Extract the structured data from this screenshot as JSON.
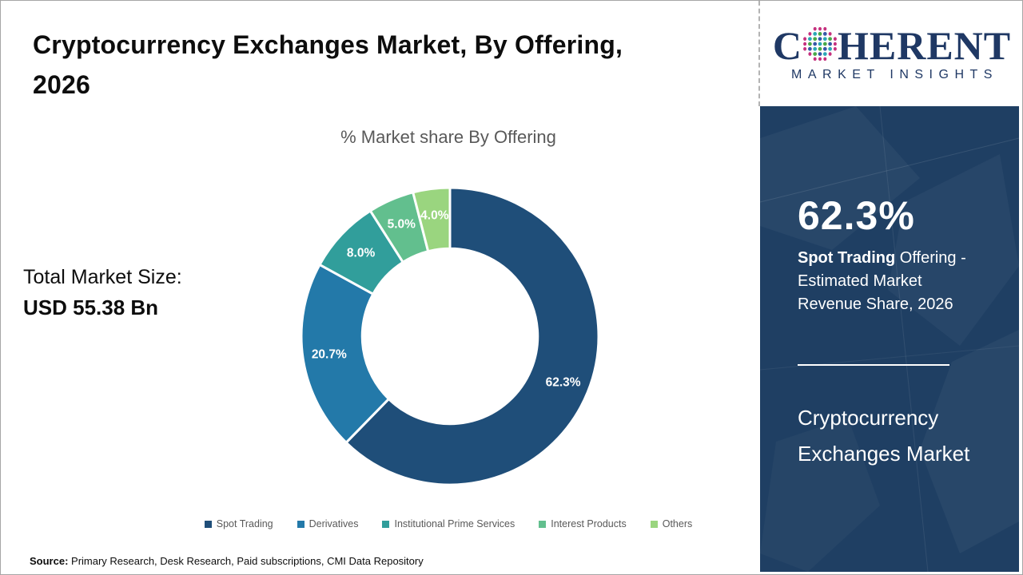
{
  "header": {
    "title_line1": "Cryptocurrency Exchanges Market, By Offering,",
    "title_line2": "2026"
  },
  "total_market": {
    "label": "Total Market Size:",
    "value": "USD 55.38 Bn"
  },
  "chart_data": {
    "type": "pie",
    "subtype": "donut",
    "title": "% Market share By Offering",
    "categories": [
      "Spot Trading",
      "Derivatives",
      "Institutional Prime Services",
      "Interest Products",
      "Others"
    ],
    "values": [
      62.3,
      20.7,
      8.0,
      5.0,
      4.0
    ],
    "unit": "%",
    "colors": [
      "#1f4e79",
      "#2379a9",
      "#319e9b",
      "#62bf8e",
      "#9ad57f"
    ],
    "start_angle_deg": 0,
    "direction": "clockwise",
    "inner_radius_ratio": 0.59,
    "legend_position": "bottom",
    "slice_label_color": "#ffffff",
    "annotation_total": "Total Market Size: USD 55.38 Bn"
  },
  "sidebar": {
    "logo": {
      "brand_prefix": "C",
      "brand_suffix": "HERENT",
      "tagline": "MARKET INSIGHTS",
      "brand_color": "#1f3864",
      "globe_dot_colors": [
        "#2aa7b5",
        "#48a947",
        "#3557a7",
        "#c5317e"
      ]
    },
    "panel_color": "#1f3f63",
    "stat_value": "62.3%",
    "stat_desc_bold": "Spot Trading",
    "stat_desc_line1_rest": " Offering -",
    "stat_desc_line2": "Estimated Market",
    "stat_desc_line3": "Revenue Share, 2026",
    "market_name_line1": "Cryptocurrency",
    "market_name_line2": "Exchanges Market"
  },
  "footer": {
    "source_label": "Source:",
    "source_text": " Primary Research, Desk Research, Paid subscriptions, CMI Data Repository"
  }
}
